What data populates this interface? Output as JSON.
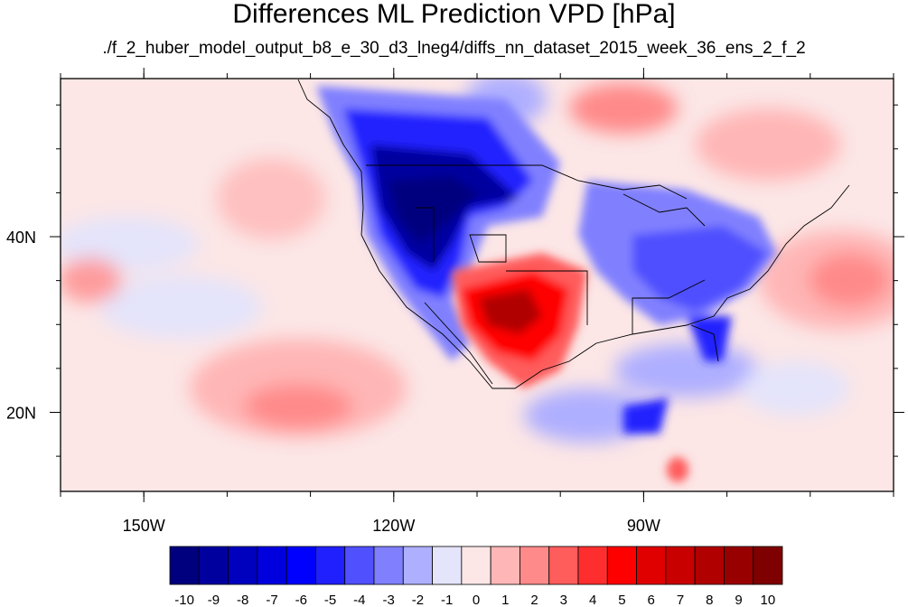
{
  "title": "Differences ML Prediction VPD [hPa]",
  "subtitle": "./f_2_huber_model_output_b8_e_30_d3_lneg4/diffs_nn_dataset_2015_week_36_ens_2_f_2",
  "axes": {
    "lon_range": [
      -160,
      -60
    ],
    "lat_range": [
      11,
      58
    ],
    "x_ticks": [
      "150W",
      "120W",
      "90W"
    ],
    "y_ticks": [
      "40N",
      "20N"
    ]
  },
  "colorbar": {
    "labels": [
      "-10",
      "-9",
      "-8",
      "-7",
      "-6",
      "-5",
      "-4",
      "-3",
      "-2",
      "-1",
      "0",
      "1",
      "2",
      "3",
      "4",
      "5",
      "6",
      "7",
      "8",
      "9",
      "10"
    ],
    "colors": [
      "#00007f",
      "#00009f",
      "#0000bf",
      "#0000df",
      "#0000ff",
      "#2020ff",
      "#5050ff",
      "#8080ff",
      "#afafff",
      "#e4e4fb",
      "#fce6e6",
      "#ffb6b6",
      "#ff8a8a",
      "#ff5c5c",
      "#ff2e2e",
      "#ff0000",
      "#e00000",
      "#c80000",
      "#b00000",
      "#980000",
      "#7f0000"
    ]
  },
  "chart_data": {
    "type": "heatmap",
    "title": "Differences ML Prediction VPD [hPa]",
    "subtitle": "./f_2_huber_model_output_b8_e_30_d3_lneg4/diffs_nn_dataset_2015_week_36_ens_2_f_2",
    "variable_unit": "hPa",
    "value_range": [
      -10,
      10
    ],
    "x_axis": {
      "ticks": [
        -150,
        -120,
        -90
      ],
      "tick_labels": [
        "150W",
        "120W",
        "90W"
      ]
    },
    "y_axis": {
      "ticks": [
        40,
        20
      ],
      "tick_labels": [
        "40N",
        "20N"
      ]
    },
    "regions": [
      {
        "lon": -115,
        "lat": 46,
        "value": -9
      },
      {
        "lon": -108,
        "lat": 50,
        "value": -7
      },
      {
        "lon": -100,
        "lat": 46,
        "value": -4
      },
      {
        "lon": -84,
        "lat": 40,
        "value": -4
      },
      {
        "lon": -80,
        "lat": 35,
        "value": -4
      },
      {
        "lon": -81,
        "lat": 28,
        "value": -4
      },
      {
        "lon": -90,
        "lat": 18,
        "value": -6
      },
      {
        "lon": -104,
        "lat": 34,
        "value": 8
      },
      {
        "lon": -110,
        "lat": 33,
        "value": 6
      },
      {
        "lon": -72,
        "lat": 36,
        "value": 3
      },
      {
        "lon": -84,
        "lat": 53,
        "value": 3
      },
      {
        "lon": -135,
        "lat": 22,
        "value": 2
      },
      {
        "lon": -140,
        "lat": 35,
        "value": -1
      }
    ]
  }
}
